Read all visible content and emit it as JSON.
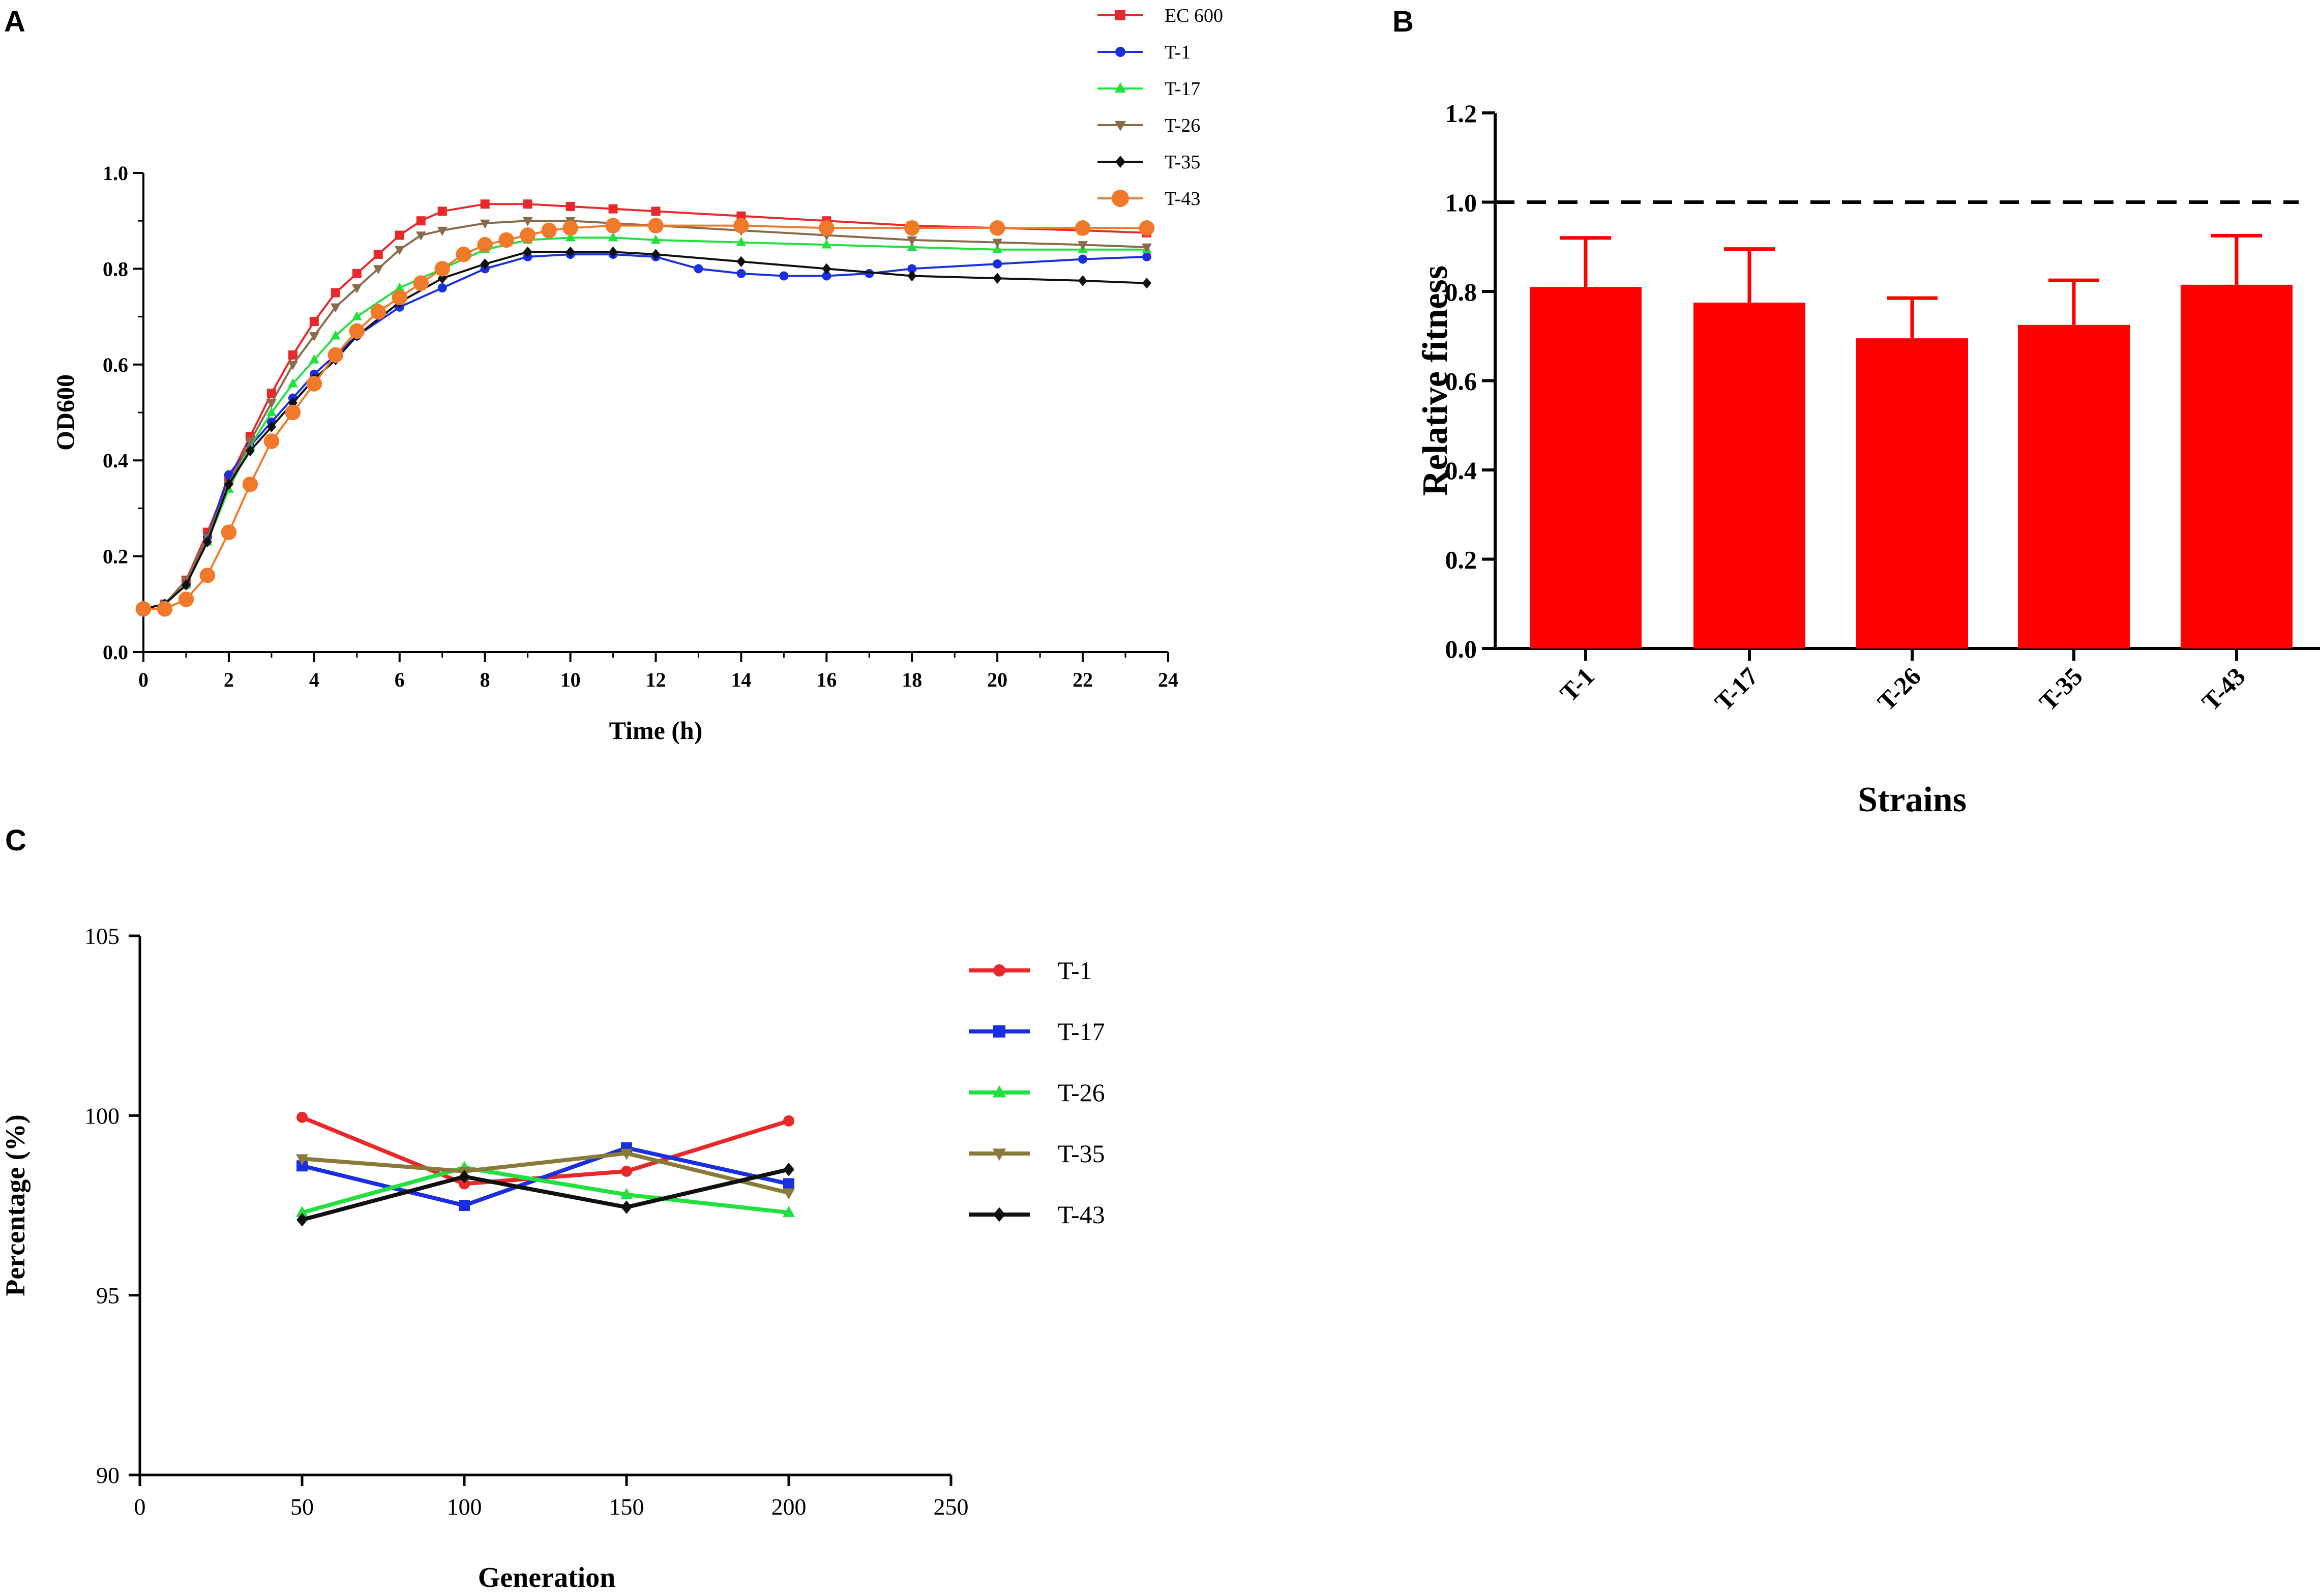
{
  "panels": {
    "a": "A",
    "b": "B",
    "c": "C"
  },
  "chart_data": [
    {
      "panel": "A",
      "type": "line",
      "title": "",
      "xlabel": "Time (h)",
      "ylabel": "OD600",
      "xlim": [
        0,
        24
      ],
      "ylim": [
        0,
        1.0
      ],
      "xticks": [
        0,
        2,
        4,
        6,
        8,
        10,
        12,
        14,
        16,
        18,
        20,
        22,
        24
      ],
      "yticks": [
        "0.0",
        "0.2",
        "0.4",
        "0.6",
        "0.8",
        "1.0"
      ],
      "legend_position": "top-right",
      "series": [
        {
          "name": "EC 600",
          "color": "#e8282a",
          "marker": "square",
          "x": [
            0,
            0.5,
            1,
            1.5,
            2,
            2.5,
            3,
            3.5,
            4,
            4.5,
            5,
            5.5,
            6,
            6.5,
            7,
            8,
            9,
            10,
            11,
            12,
            14,
            16,
            18,
            20,
            22,
            23.5
          ],
          "y": [
            0.09,
            0.1,
            0.15,
            0.25,
            0.36,
            0.45,
            0.54,
            0.62,
            0.69,
            0.75,
            0.79,
            0.83,
            0.87,
            0.9,
            0.92,
            0.935,
            0.935,
            0.93,
            0.925,
            0.92,
            0.91,
            0.9,
            0.89,
            0.885,
            0.88,
            0.875
          ]
        },
        {
          "name": "T-1",
          "color": "#1a2fe0",
          "marker": "circle",
          "x": [
            0,
            0.5,
            1,
            1.5,
            2,
            2.5,
            3,
            3.5,
            4,
            4.5,
            5,
            6,
            7,
            8,
            9,
            10,
            11,
            12,
            13,
            14,
            15,
            16,
            17,
            18,
            20,
            22,
            23.5
          ],
          "y": [
            0.09,
            0.1,
            0.14,
            0.24,
            0.37,
            0.43,
            0.48,
            0.53,
            0.58,
            0.62,
            0.66,
            0.72,
            0.76,
            0.8,
            0.825,
            0.83,
            0.83,
            0.825,
            0.8,
            0.79,
            0.785,
            0.785,
            0.79,
            0.8,
            0.81,
            0.82,
            0.825
          ]
        },
        {
          "name": "T-17",
          "color": "#22e040",
          "marker": "triangle-up",
          "x": [
            0,
            0.5,
            1,
            1.5,
            2,
            2.5,
            3,
            3.5,
            4,
            4.5,
            5,
            6,
            7,
            8,
            9,
            10,
            11,
            12,
            14,
            16,
            18,
            20,
            22,
            23.5
          ],
          "y": [
            0.09,
            0.1,
            0.14,
            0.23,
            0.34,
            0.43,
            0.5,
            0.56,
            0.61,
            0.66,
            0.7,
            0.76,
            0.8,
            0.84,
            0.86,
            0.865,
            0.865,
            0.86,
            0.855,
            0.85,
            0.845,
            0.84,
            0.84,
            0.84
          ]
        },
        {
          "name": "T-26",
          "color": "#8a6a4a",
          "marker": "triangle-down",
          "x": [
            0,
            0.5,
            1,
            1.5,
            2,
            2.5,
            3,
            3.5,
            4,
            4.5,
            5,
            5.5,
            6,
            6.5,
            7,
            8,
            9,
            10,
            11,
            12,
            14,
            16,
            18,
            20,
            22,
            23.5
          ],
          "y": [
            0.09,
            0.1,
            0.15,
            0.24,
            0.35,
            0.44,
            0.52,
            0.6,
            0.66,
            0.72,
            0.76,
            0.8,
            0.84,
            0.87,
            0.88,
            0.895,
            0.9,
            0.9,
            0.895,
            0.89,
            0.88,
            0.87,
            0.86,
            0.855,
            0.85,
            0.845
          ]
        },
        {
          "name": "T-35",
          "color": "#101010",
          "marker": "diamond",
          "x": [
            0,
            0.5,
            1,
            1.5,
            2,
            2.5,
            3,
            3.5,
            4,
            4.5,
            5,
            6,
            7,
            8,
            9,
            10,
            11,
            12,
            14,
            16,
            18,
            20,
            22,
            23.5
          ],
          "y": [
            0.09,
            0.1,
            0.14,
            0.23,
            0.35,
            0.42,
            0.47,
            0.52,
            0.57,
            0.61,
            0.66,
            0.73,
            0.78,
            0.81,
            0.835,
            0.835,
            0.835,
            0.83,
            0.815,
            0.8,
            0.785,
            0.78,
            0.775,
            0.77
          ]
        },
        {
          "name": "T-43",
          "color": "#f07a2a",
          "marker": "big-circle",
          "x": [
            0,
            0.5,
            1,
            1.5,
            2,
            2.5,
            3,
            3.5,
            4,
            4.5,
            5,
            5.5,
            6,
            6.5,
            7,
            7.5,
            8,
            8.5,
            9,
            9.5,
            10,
            11,
            12,
            14,
            16,
            18,
            20,
            22,
            23.5
          ],
          "y": [
            0.09,
            0.09,
            0.11,
            0.16,
            0.25,
            0.35,
            0.44,
            0.5,
            0.56,
            0.62,
            0.67,
            0.71,
            0.74,
            0.77,
            0.8,
            0.83,
            0.85,
            0.86,
            0.87,
            0.88,
            0.885,
            0.89,
            0.89,
            0.89,
            0.885,
            0.885,
            0.885,
            0.885,
            0.885
          ]
        }
      ]
    },
    {
      "panel": "B",
      "type": "bar",
      "title": "",
      "xlabel": "Strains",
      "ylabel": "Relative fitness",
      "categories": [
        "T-1",
        "T-17",
        "T-26",
        "T-35",
        "T-43"
      ],
      "values": [
        0.81,
        0.775,
        0.695,
        0.725,
        0.815
      ],
      "error_upper": [
        0.92,
        0.895,
        0.785,
        0.825,
        0.925
      ],
      "reference_line": 1.0,
      "ylim": [
        0,
        1.2
      ],
      "yticks": [
        "0.0",
        "0.2",
        "0.4",
        "0.6",
        "0.8",
        "1.0",
        "1.2"
      ],
      "bar_color": "#ff0000"
    },
    {
      "panel": "C",
      "type": "line",
      "title": "",
      "xlabel": "Generation",
      "ylabel": "Percentage (%)",
      "xlim": [
        0,
        250
      ],
      "ylim": [
        90,
        105
      ],
      "xticks": [
        0,
        50,
        100,
        150,
        200,
        250
      ],
      "yticks": [
        90,
        95,
        100,
        105
      ],
      "legend_position": "right",
      "x": [
        50,
        100,
        150,
        200
      ],
      "series": [
        {
          "name": "T-1",
          "color": "#e8282a",
          "marker": "circle",
          "values": [
            99.95,
            98.1,
            98.45,
            99.85
          ]
        },
        {
          "name": "T-17",
          "color": "#1a2fe0",
          "marker": "square",
          "values": [
            98.6,
            97.5,
            99.1,
            98.1
          ]
        },
        {
          "name": "T-26",
          "color": "#22e040",
          "marker": "triangle-up",
          "values": [
            97.3,
            98.55,
            97.8,
            97.3
          ]
        },
        {
          "name": "T-35",
          "color": "#8a7a3a",
          "marker": "triangle-down",
          "values": [
            98.8,
            98.45,
            98.95,
            97.85
          ]
        },
        {
          "name": "T-43",
          "color": "#101010",
          "marker": "diamond",
          "values": [
            97.1,
            98.3,
            97.45,
            98.5
          ]
        }
      ]
    }
  ]
}
